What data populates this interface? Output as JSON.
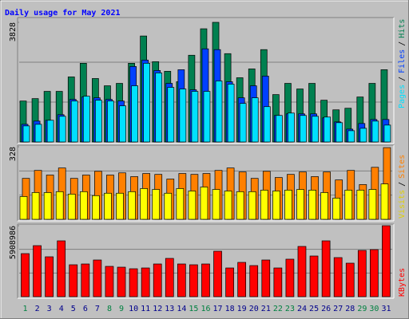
{
  "chart_data": {
    "type": "bar",
    "title": "Daily usage for May 2021",
    "categories": [
      "1",
      "2",
      "3",
      "4",
      "5",
      "6",
      "7",
      "8",
      "9",
      "10",
      "11",
      "12",
      "13",
      "14",
      "15",
      "16",
      "17",
      "18",
      "19",
      "20",
      "21",
      "22",
      "23",
      "24",
      "25",
      "26",
      "27",
      "28",
      "29",
      "30",
      "31"
    ],
    "category_colors": [
      "#008040",
      "#00008b",
      "#00008b",
      "#00008b",
      "#00008b",
      "#00008b",
      "#00008b",
      "#008040",
      "#008040",
      "#00008b",
      "#00008b",
      "#00008b",
      "#00008b",
      "#00008b",
      "#008040",
      "#008040",
      "#00008b",
      "#00008b",
      "#00008b",
      "#00008b",
      "#00008b",
      "#008040",
      "#008040",
      "#00008b",
      "#00008b",
      "#00008b",
      "#00008b",
      "#00008b",
      "#008040",
      "#008040",
      "#00008b"
    ],
    "legend_separator": "/",
    "panels": [
      {
        "ylim": [
          0,
          3828
        ],
        "yticks": [
          3828
        ],
        "series": [
          {
            "name": "Hits",
            "color": "#008050",
            "values": [
              1310,
              1387,
              1619,
              1619,
              2081,
              2518,
              2030,
              1798,
              1875,
              2518,
              3391,
              2569,
              2261,
              1927,
              2775,
              3622,
              3828,
              2826,
              2055,
              2338,
              2955,
              1516,
              1875,
              1696,
              1875,
              1336,
              1028,
              1079,
              1439,
              1875,
              2312
            ]
          },
          {
            "name": "Files",
            "color": "#0040ff",
            "values": [
              565,
              668,
              694,
              873,
              1362,
              1439,
              1413,
              1362,
              1310,
              2415,
              2621,
              2287,
              1875,
              2312,
              1670,
              2980,
              2955,
              1927,
              1413,
              1798,
              2107,
              848,
              899,
              899,
              899,
              771,
              642,
              411,
              591,
              719,
              719
            ]
          },
          {
            "name": "Pages",
            "color": "#00e0ff",
            "values": [
              514,
              565,
              694,
              822,
              1310,
              1464,
              1336,
              1310,
              1156,
              1798,
              2518,
              2209,
              1747,
              1696,
              1619,
              1619,
              1952,
              1850,
              1233,
              1413,
              1130,
              848,
              925,
              848,
              822,
              797,
              617,
              360,
              437,
              668,
              540
            ]
          }
        ]
      },
      {
        "ylim": [
          0,
          328
        ],
        "yticks": [
          328
        ],
        "series": [
          {
            "name": "Sites",
            "color": "#ff8000",
            "values": [
              185,
              221,
              200,
              232,
              185,
              200,
              217,
              200,
              210,
              193,
              207,
              203,
              182,
              207,
              203,
              207,
              221,
              232,
              214,
              185,
              217,
              189,
              203,
              214,
              193,
              214,
              178,
              221,
              157,
              235,
              324
            ]
          },
          {
            "name": "Visits",
            "color": "#ffff00",
            "values": [
              103,
              121,
              121,
              125,
              114,
              125,
              107,
              118,
              118,
              125,
              139,
              135,
              118,
              139,
              128,
              146,
              135,
              128,
              125,
              125,
              132,
              128,
              132,
              135,
              132,
              121,
              96,
              132,
              132,
              135,
              160
            ]
          }
        ]
      },
      {
        "ylim": [
          0,
          5908986
        ],
        "yticks": [
          5908986
        ],
        "series": [
          {
            "name": "KBytes",
            "color": "#ff0000",
            "values": [
              3585000,
              4249000,
              3320000,
              4648000,
              2656000,
              2722000,
              3054000,
              2523000,
              2456000,
              2324000,
              2390000,
              2722000,
              3187000,
              2722000,
              2656000,
              2722000,
              3784000,
              2390000,
              2855000,
              2589000,
              3054000,
              2390000,
              3121000,
              4183000,
              3386000,
              4648000,
              3253000,
              2789000,
              3851000,
              3917000,
              5908986
            ]
          }
        ]
      }
    ]
  }
}
